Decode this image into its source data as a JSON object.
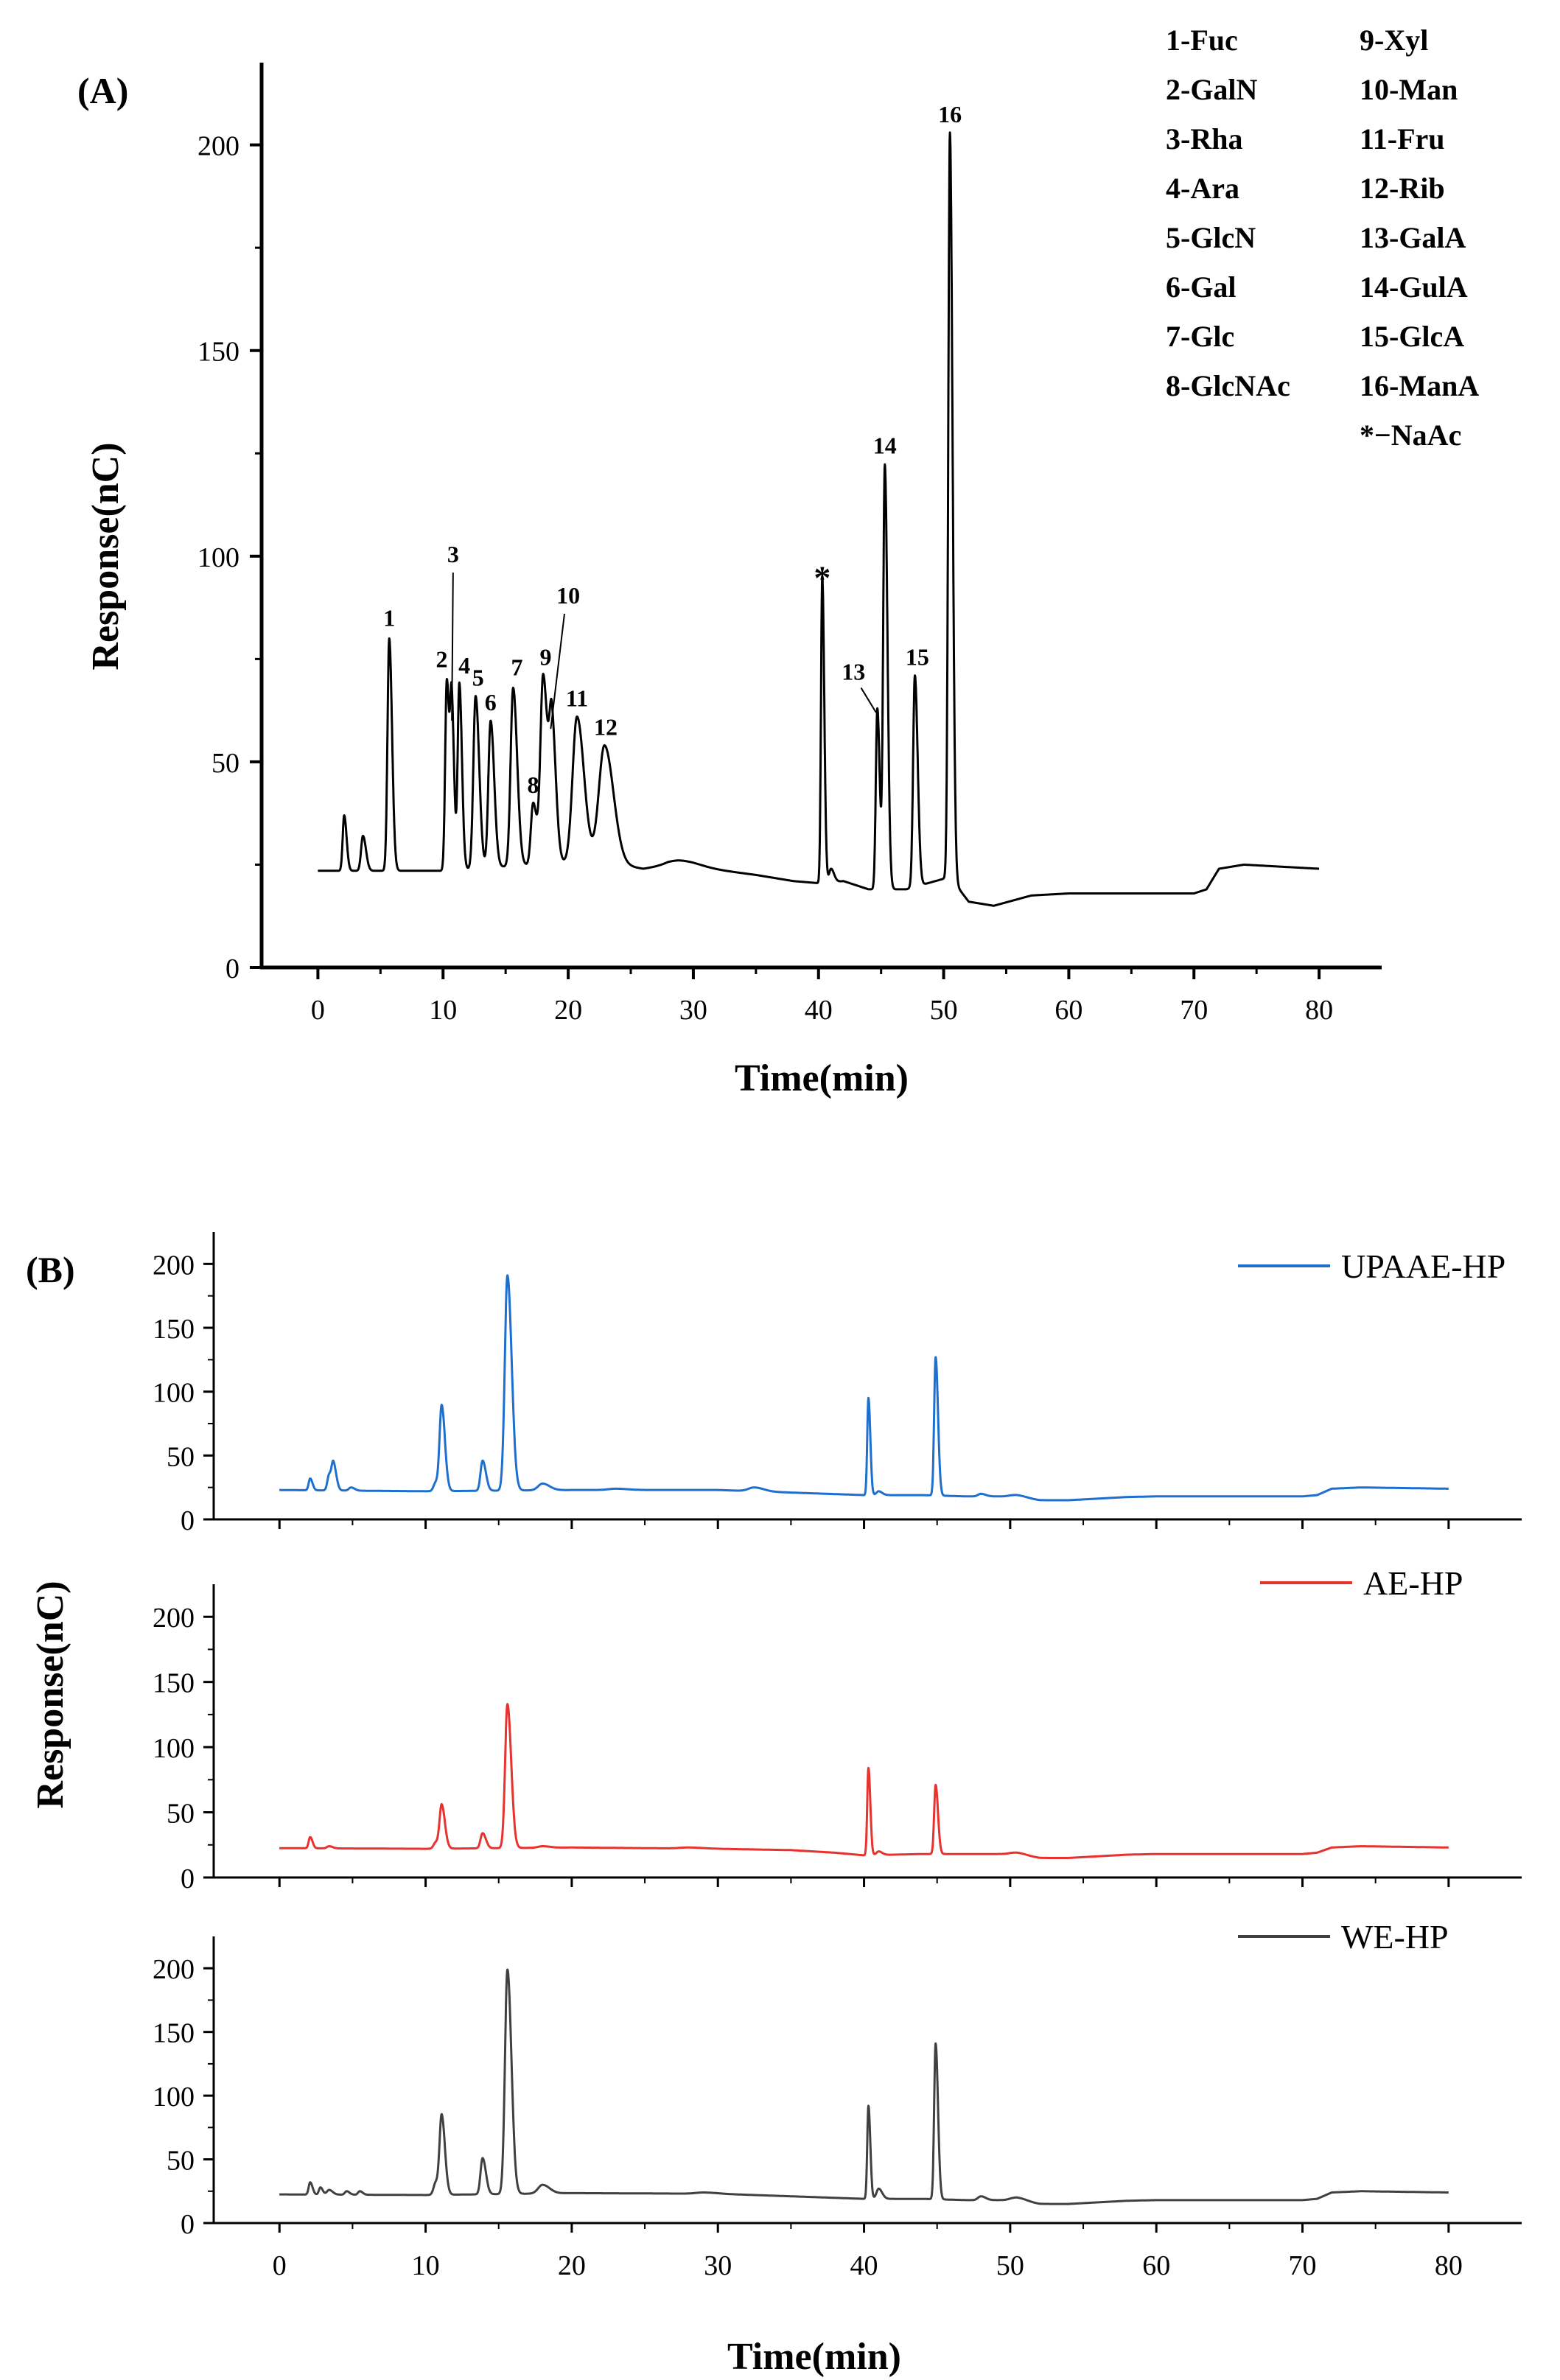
{
  "chart_data": [
    {
      "panel_label": "(A)",
      "type": "line",
      "xlabel": "Time(min)",
      "ylabel": "Response(nC)",
      "xlim": [
        -4.5,
        85
      ],
      "ylim": [
        0,
        220
      ],
      "xticks": [
        "0",
        "10",
        "20",
        "30",
        "40",
        "50",
        "60",
        "70",
        "80"
      ],
      "yticks": [
        "0",
        "50",
        "100",
        "150",
        "200"
      ],
      "ytick_values": [
        0,
        50,
        100,
        150,
        200
      ],
      "baseline": [
        [
          0,
          23.5
        ],
        [
          10,
          23.5
        ],
        [
          22,
          26
        ],
        [
          26,
          24
        ],
        [
          28,
          25
        ],
        [
          30,
          24.5
        ],
        [
          35,
          22.5
        ],
        [
          38,
          21
        ],
        [
          40,
          20.5
        ],
        [
          42,
          21
        ],
        [
          44,
          19
        ],
        [
          47,
          19
        ],
        [
          50.5,
          22
        ],
        [
          52,
          16
        ],
        [
          54,
          15
        ],
        [
          57,
          17.5
        ],
        [
          60,
          18
        ],
        [
          70,
          18
        ],
        [
          71,
          19
        ],
        [
          72,
          24
        ],
        [
          74,
          25
        ],
        [
          80,
          24
        ]
      ],
      "peaks": [
        [
          2.1,
          37,
          0.12
        ],
        [
          3.6,
          32,
          0.15
        ],
        [
          5.7,
          80,
          0.14
        ],
        [
          10.3,
          70,
          0.13
        ],
        [
          10.7,
          61,
          0.12
        ],
        [
          11.3,
          69,
          0.13
        ],
        [
          12.6,
          66,
          0.18
        ],
        [
          13.8,
          60,
          0.18
        ],
        [
          15.6,
          68,
          0.2
        ],
        [
          17.2,
          40,
          0.18
        ],
        [
          18.0,
          71,
          0.22
        ],
        [
          18.7,
          58,
          0.2
        ],
        [
          20.7,
          61,
          0.35
        ],
        [
          22.9,
          54,
          0.45
        ],
        [
          29,
          26,
          0.9
        ],
        [
          40.3,
          95,
          0.1
        ],
        [
          41.0,
          24,
          0.15
        ],
        [
          44.7,
          63,
          0.12
        ],
        [
          45.3,
          122,
          0.13
        ],
        [
          47.7,
          71,
          0.14
        ],
        [
          50.5,
          203,
          0.13
        ]
      ],
      "peak_labels": [
        {
          "text": "1",
          "x": 5.7,
          "y": 83
        },
        {
          "text": "2",
          "x": 9.9,
          "y": 73
        },
        {
          "text": "3",
          "x": 10.8,
          "y": 98.5
        },
        {
          "text": "4",
          "x": 11.7,
          "y": 71.5
        },
        {
          "text": "5",
          "x": 12.8,
          "y": 68.5
        },
        {
          "text": "6",
          "x": 13.8,
          "y": 62.5
        },
        {
          "text": "7",
          "x": 15.9,
          "y": 71
        },
        {
          "text": "8",
          "x": 17.2,
          "y": 42.5
        },
        {
          "text": "9",
          "x": 18.2,
          "y": 73.5
        },
        {
          "text": "10",
          "x": 20.0,
          "y": 88.5
        },
        {
          "text": "11",
          "x": 20.7,
          "y": 63.5
        },
        {
          "text": "12",
          "x": 23.0,
          "y": 56.5
        },
        {
          "text": "*",
          "x": 40.3,
          "y": 92
        },
        {
          "text": "13",
          "x": 42.8,
          "y": 70
        },
        {
          "text": "14",
          "x": 45.3,
          "y": 125
        },
        {
          "text": "15",
          "x": 47.9,
          "y": 73.5
        },
        {
          "text": "16",
          "x": 50.5,
          "y": 205.5
        }
      ],
      "legend_col1": [
        "1-Fuc",
        "2-GalN",
        "3-Rha",
        "4-Ara",
        "5-GlcN",
        "6-Gal",
        "7-Glc",
        "8-GlcNAc"
      ],
      "legend_col2": [
        "9-Xyl",
        "10-Man",
        "11-Fru",
        "12-Rib",
        "13-GalA",
        "14-GulA",
        "15-GlcA",
        "16-ManA",
        "*−NaAc"
      ],
      "color": "#000000"
    },
    {
      "panel_label": "(B)",
      "type": "line",
      "xlabel": "Time(min)",
      "ylabel": "Response(nC)",
      "xlim": [
        -4.5,
        85
      ],
      "ylim": [
        0,
        225
      ],
      "xticks": [
        "0",
        "10",
        "20",
        "30",
        "40",
        "50",
        "60",
        "70",
        "80"
      ],
      "yticks": [
        "0",
        "50",
        "100",
        "150",
        "200"
      ],
      "ytick_values": [
        0,
        50,
        100,
        150,
        200
      ],
      "series": [
        {
          "name": "UPAAE-HP",
          "color": "#1f6fce",
          "baseline": [
            [
              0,
              23
            ],
            [
              10,
              22
            ],
            [
              20,
              23
            ],
            [
              30,
              23
            ],
            [
              35,
              21
            ],
            [
              40,
              19
            ],
            [
              44,
              19
            ],
            [
              47,
              18
            ],
            [
              50,
              18
            ],
            [
              52,
              15
            ],
            [
              54,
              15
            ],
            [
              58,
              17.5
            ],
            [
              60,
              18
            ],
            [
              70,
              18
            ],
            [
              71,
              19
            ],
            [
              72,
              24
            ],
            [
              74,
              25
            ],
            [
              80,
              24
            ]
          ],
          "peaks": [
            [
              2.1,
              32,
              0.1
            ],
            [
              3.4,
              35,
              0.12
            ],
            [
              3.7,
              42,
              0.12
            ],
            [
              4.9,
              25,
              0.15
            ],
            [
              10.7,
              29,
              0.15
            ],
            [
              11.1,
              88,
              0.14
            ],
            [
              13.9,
              46,
              0.14
            ],
            [
              15.6,
              191,
              0.18
            ],
            [
              18.0,
              28,
              0.3
            ],
            [
              23,
              24,
              0.5
            ],
            [
              32.5,
              25,
              0.4
            ],
            [
              40.3,
              95,
              0.08
            ],
            [
              41,
              22,
              0.15
            ],
            [
              44.9,
              127,
              0.1
            ],
            [
              48,
              20,
              0.2
            ],
            [
              50.5,
              19,
              0.4
            ]
          ]
        },
        {
          "name": "AE-HP",
          "color": "#e8322e",
          "baseline": [
            [
              0,
              22.5
            ],
            [
              10,
              22
            ],
            [
              20,
              23
            ],
            [
              30,
              22
            ],
            [
              35,
              21
            ],
            [
              38,
              19
            ],
            [
              40,
              17
            ],
            [
              44,
              18
            ],
            [
              50,
              18
            ],
            [
              52,
              15
            ],
            [
              54,
              15
            ],
            [
              58,
              17.5
            ],
            [
              60,
              18
            ],
            [
              70,
              18
            ],
            [
              71,
              19
            ],
            [
              72,
              23
            ],
            [
              74,
              24
            ],
            [
              80,
              23
            ]
          ],
          "peaks": [
            [
              2.1,
              31,
              0.1
            ],
            [
              3.4,
              24,
              0.15
            ],
            [
              10.7,
              27,
              0.15
            ],
            [
              11.1,
              55,
              0.14
            ],
            [
              13.9,
              34,
              0.14
            ],
            [
              15.6,
              133,
              0.16
            ],
            [
              18.0,
              24,
              0.3
            ],
            [
              28,
              23,
              0.6
            ],
            [
              40.3,
              84,
              0.08
            ],
            [
              41,
              20,
              0.15
            ],
            [
              44.9,
              71,
              0.1
            ],
            [
              50.5,
              19,
              0.4
            ]
          ]
        },
        {
          "name": "WE-HP",
          "color": "#404040",
          "baseline": [
            [
              0,
              22.5
            ],
            [
              10,
              22
            ],
            [
              20,
              23.5
            ],
            [
              30,
              23
            ],
            [
              35,
              21
            ],
            [
              40,
              19
            ],
            [
              44,
              19
            ],
            [
              47,
              18
            ],
            [
              50,
              18
            ],
            [
              52,
              15
            ],
            [
              54,
              15
            ],
            [
              58,
              17.5
            ],
            [
              60,
              18
            ],
            [
              70,
              18
            ],
            [
              71,
              19
            ],
            [
              72,
              24
            ],
            [
              74,
              25
            ],
            [
              80,
              24
            ]
          ],
          "peaks": [
            [
              2.1,
              32,
              0.1
            ],
            [
              2.8,
              28,
              0.1
            ],
            [
              3.4,
              26,
              0.15
            ],
            [
              4.6,
              25,
              0.12
            ],
            [
              5.5,
              25,
              0.12
            ],
            [
              10.7,
              32,
              0.15
            ],
            [
              11.1,
              83,
              0.14
            ],
            [
              13.9,
              51,
              0.14
            ],
            [
              15.6,
              199,
              0.17
            ],
            [
              18.0,
              30,
              0.3
            ],
            [
              29,
              24,
              0.5
            ],
            [
              40.3,
              92,
              0.08
            ],
            [
              41,
              27,
              0.15
            ],
            [
              44.9,
              141,
              0.1
            ],
            [
              48,
              21,
              0.2
            ],
            [
              50.5,
              20,
              0.4
            ]
          ]
        }
      ]
    }
  ]
}
